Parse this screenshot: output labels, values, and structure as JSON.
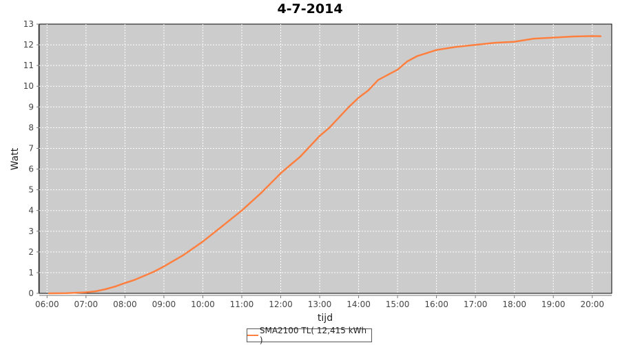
{
  "chart_data": {
    "type": "line",
    "title": "4-7-2014",
    "xlabel": "tijd",
    "ylabel": "Watt",
    "xlim": [
      "05:48",
      "20:30"
    ],
    "ylim": [
      0,
      13
    ],
    "x_ticks": [
      "06:00",
      "07:00",
      "08:00",
      "09:00",
      "10:00",
      "11:00",
      "12:00",
      "13:00",
      "14:00",
      "15:00",
      "16:00",
      "17:00",
      "18:00",
      "19:00",
      "20:00"
    ],
    "y_ticks": [
      0,
      1,
      2,
      3,
      4,
      5,
      6,
      7,
      8,
      9,
      10,
      11,
      12,
      13
    ],
    "grid": true,
    "legend_position": "bottom",
    "colors": {
      "series": "#ff7f3f",
      "plot_bg": "#cccccc",
      "grid": "#ffffff"
    },
    "series": [
      {
        "name": "SMA2100 TL( 12,415 kWh )",
        "x": [
          "06:03",
          "06:30",
          "07:00",
          "07:15",
          "07:30",
          "07:45",
          "08:00",
          "08:15",
          "08:30",
          "08:45",
          "09:00",
          "09:30",
          "10:00",
          "10:30",
          "11:00",
          "11:30",
          "12:00",
          "12:15",
          "12:30",
          "12:45",
          "13:00",
          "13:15",
          "13:30",
          "13:45",
          "14:00",
          "14:15",
          "14:30",
          "14:45",
          "15:00",
          "15:15",
          "15:30",
          "15:45",
          "16:00",
          "16:30",
          "17:00",
          "17:30",
          "18:00",
          "18:30",
          "19:00",
          "19:30",
          "20:00",
          "20:13"
        ],
        "y": [
          0.0,
          0.01,
          0.05,
          0.1,
          0.2,
          0.33,
          0.5,
          0.65,
          0.85,
          1.05,
          1.3,
          1.85,
          2.5,
          3.25,
          4.0,
          4.85,
          5.8,
          6.2,
          6.6,
          7.1,
          7.6,
          8.0,
          8.5,
          9.0,
          9.45,
          9.8,
          10.3,
          10.55,
          10.8,
          11.2,
          11.45,
          11.6,
          11.75,
          11.9,
          12.0,
          12.1,
          12.15,
          12.3,
          12.35,
          12.4,
          12.42,
          12.415
        ]
      }
    ]
  }
}
